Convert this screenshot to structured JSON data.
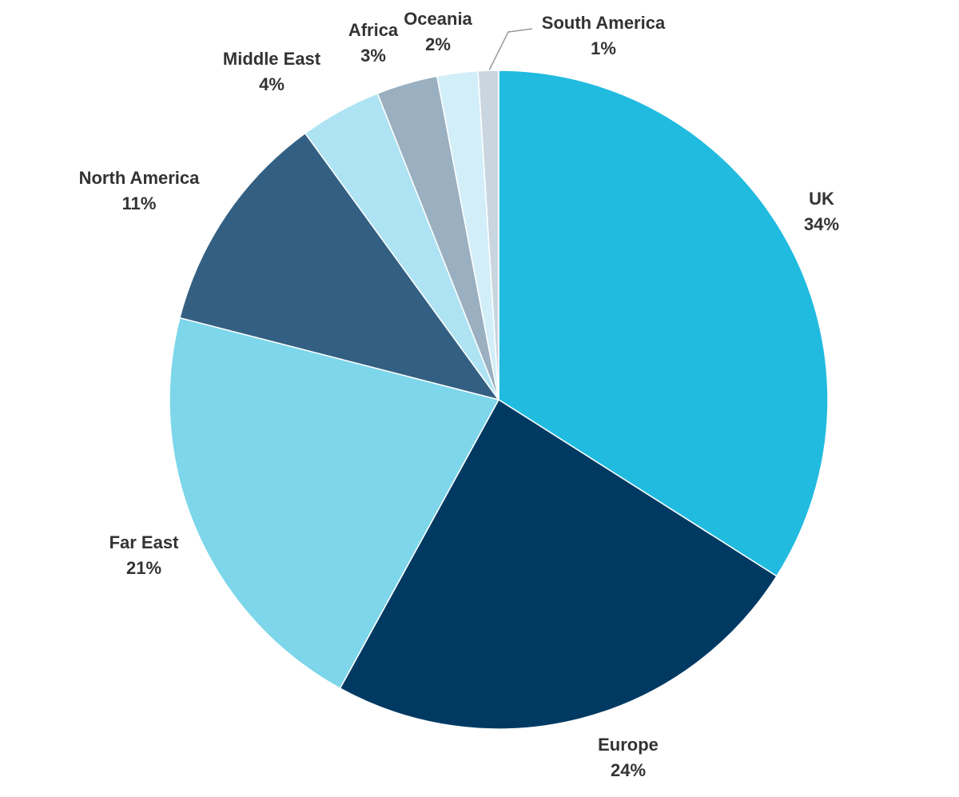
{
  "chart_data": {
    "type": "pie",
    "categories": [
      "UK",
      "Europe",
      "Far East",
      "North America",
      "Middle East",
      "Africa",
      "Oceania",
      "South America"
    ],
    "values": [
      34,
      24,
      21,
      11,
      4,
      3,
      2,
      1
    ],
    "value_labels": [
      "34%",
      "24%",
      "21%",
      "11%",
      "4%",
      "3%",
      "2%",
      "1%"
    ],
    "colors": [
      "#22bbe0",
      "#003a63",
      "#7dd6ea",
      "#336082",
      "#ade3f2",
      "#9aafc0",
      "#d2eef8",
      "#c9d6e0"
    ]
  }
}
